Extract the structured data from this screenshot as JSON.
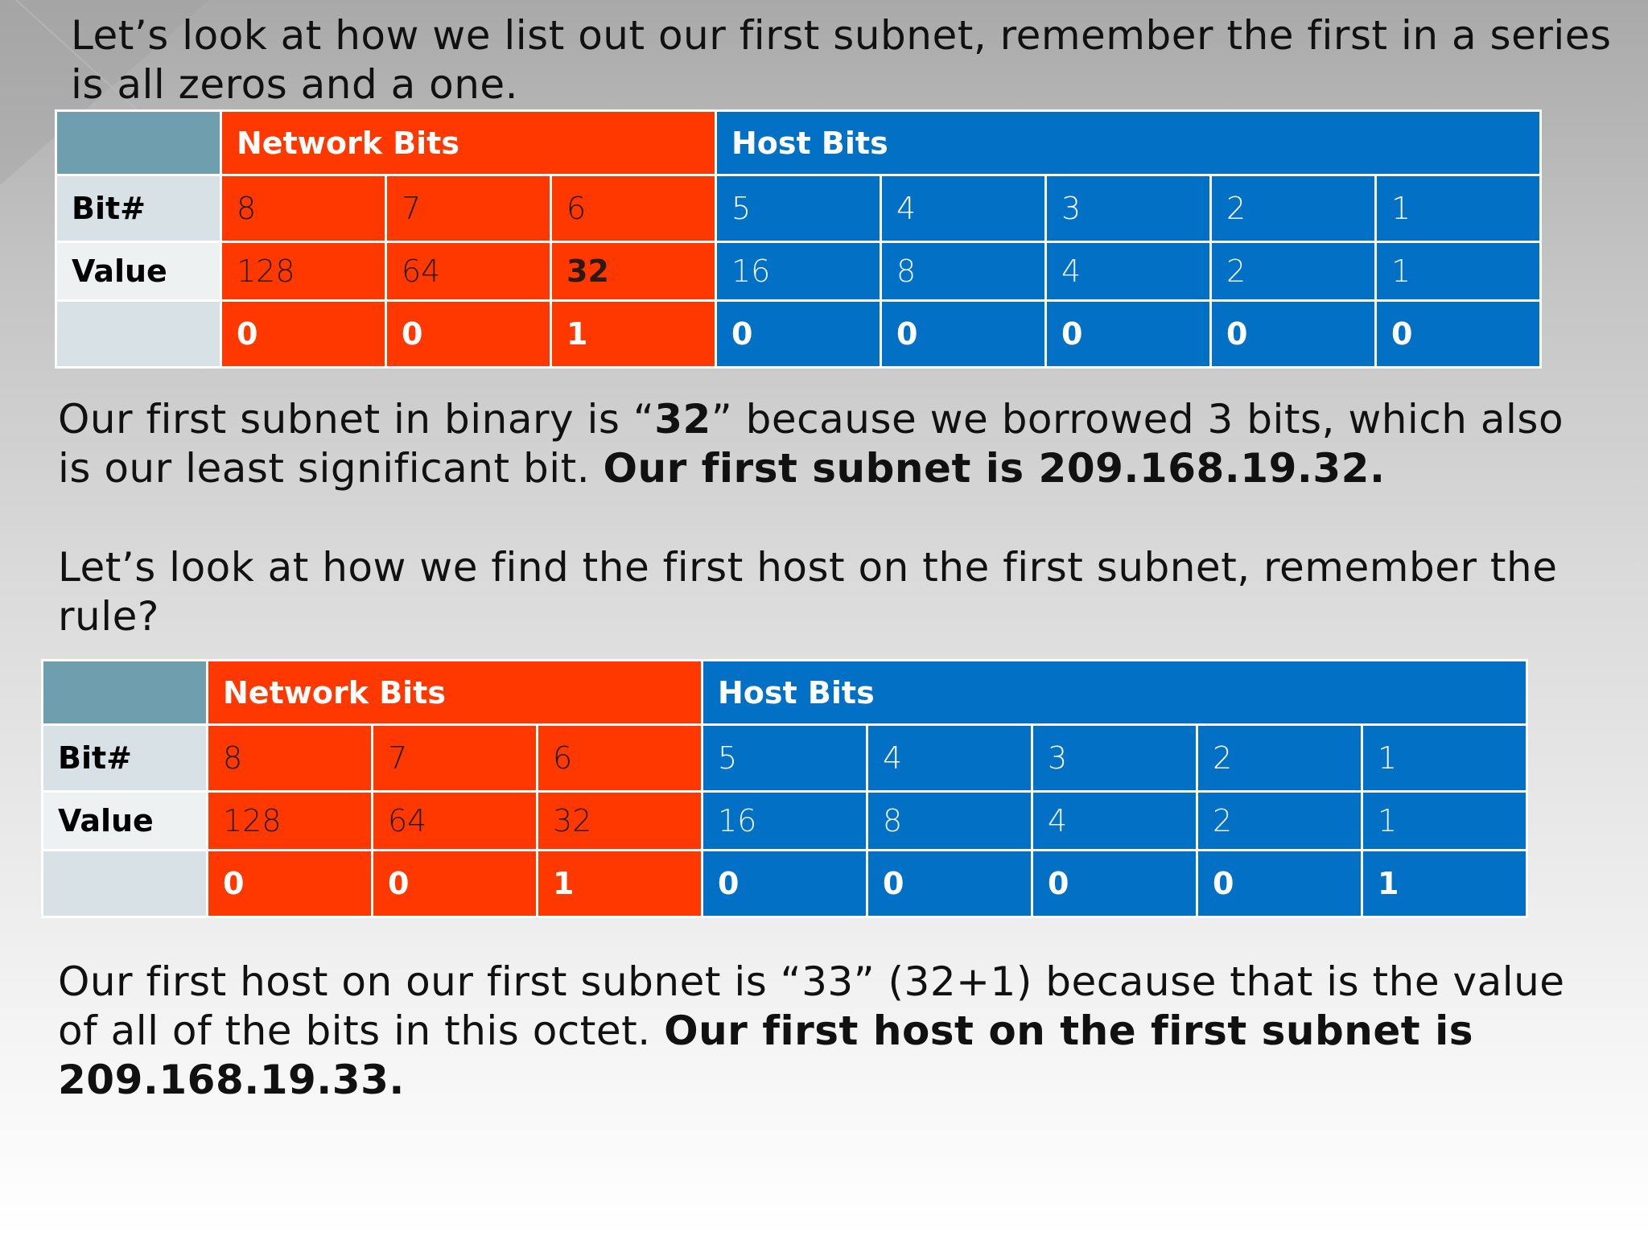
{
  "paragraph1": {
    "line1": "Let’s look at how we list out our first subnet, remember the first in a series",
    "line2": "is all zeros and a one."
  },
  "table1": {
    "network_header": "Network Bits",
    "host_header": "Host Bits",
    "row_labels": {
      "bit": "Bit#",
      "value": "Value",
      "blank": ""
    },
    "bit_numbers": [
      "8",
      "7",
      "6",
      "5",
      "4",
      "3",
      "2",
      "1"
    ],
    "values": [
      "128",
      "64",
      "32",
      "16",
      "8",
      "4",
      "2",
      "1"
    ],
    "bits": [
      "0",
      "0",
      "1",
      "0",
      "0",
      "0",
      "0",
      "0"
    ]
  },
  "paragraph2": {
    "l1_a": "Our first subnet in binary is “",
    "l1_b": "32",
    "l1_c": "” because we borrowed 3 bits, which also",
    "l2_a": "is our least significant bit. ",
    "l2_b": "Our first subnet is 209.168.19.32."
  },
  "paragraph3": {
    "line1": "Let’s look at how we find the first host on the first subnet, remember the",
    "line2": "rule?"
  },
  "table2": {
    "network_header": "Network Bits",
    "host_header": "Host Bits",
    "row_labels": {
      "bit": "Bit#",
      "value": "Value",
      "blank": ""
    },
    "bit_numbers": [
      "8",
      "7",
      "6",
      "5",
      "4",
      "3",
      "2",
      "1"
    ],
    "values": [
      "128",
      "64",
      "32",
      "16",
      "8",
      "4",
      "2",
      "1"
    ],
    "bits": [
      "0",
      "0",
      "1",
      "0",
      "0",
      "0",
      "0",
      "1"
    ]
  },
  "paragraph4": {
    "line1": "Our  first host on our first subnet is “33” (32+1) because that  is the value",
    "l2_a": "of all of the bits in this octet.  ",
    "l2_b": "Our first host on the first subnet is",
    "line3": "209.168.19.33."
  },
  "colors": {
    "network": "#ff3800",
    "host": "#0270c4",
    "corner": "#6f9fae",
    "label_bg": "#d8e1e5"
  }
}
